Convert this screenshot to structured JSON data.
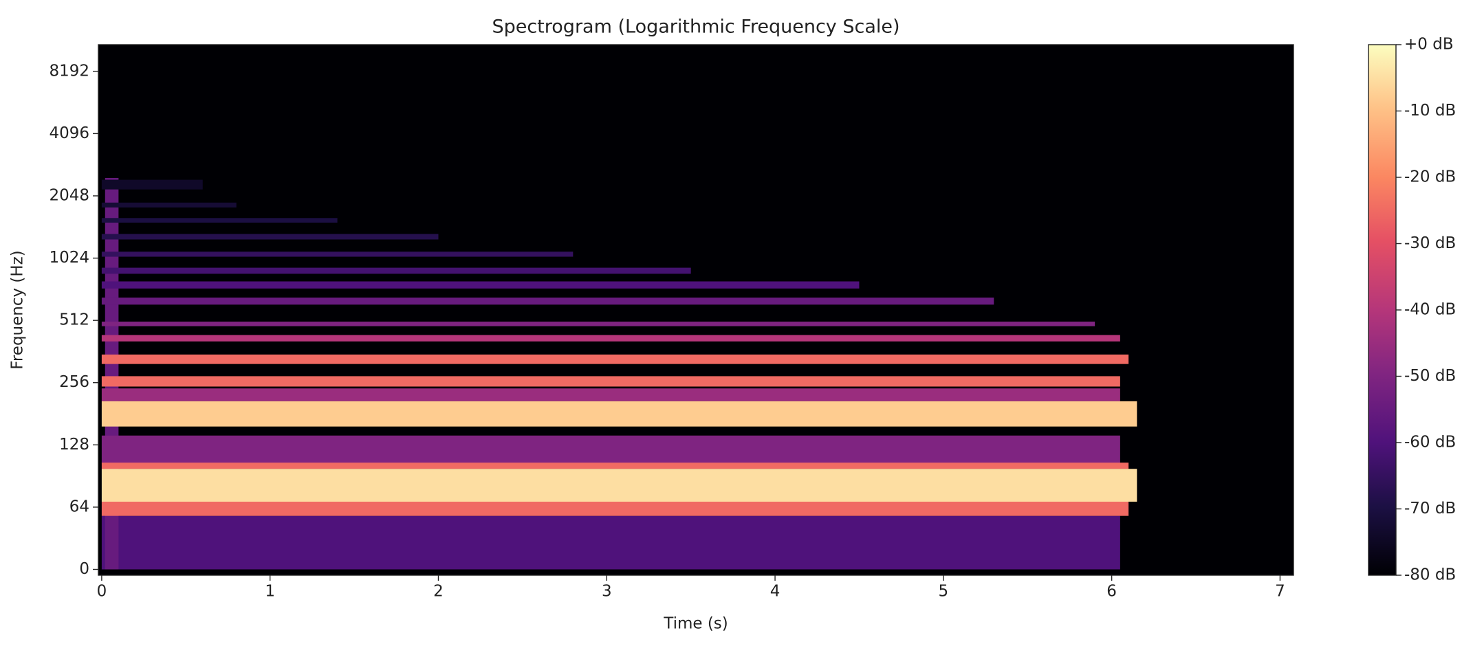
{
  "chart_data": {
    "type": "spectrogram",
    "title": "Spectrogram (Logarithmic Frequency Scale)",
    "xlabel": "Time (s)",
    "ylabel": "Frequency (Hz)",
    "xlim": [
      -0.02,
      7.08
    ],
    "xticks": [
      0,
      1,
      2,
      3,
      4,
      5,
      6,
      7
    ],
    "ylim": [
      -6,
      11025
    ],
    "yticks": [
      0,
      64,
      128,
      256,
      512,
      1024,
      2048,
      4096,
      8192
    ],
    "yscale": "symlog",
    "linthresh": 64,
    "base": 2,
    "colormap": "magma",
    "clim": [
      -80,
      0
    ],
    "cticks": [
      {
        "value": 0,
        "label": "+0 dB"
      },
      {
        "value": -10,
        "label": "-10 dB"
      },
      {
        "value": -20,
        "label": "-20 dB"
      },
      {
        "value": -30,
        "label": "-30 dB"
      },
      {
        "value": -40,
        "label": "-40 dB"
      },
      {
        "value": -50,
        "label": "-50 dB"
      },
      {
        "value": -60,
        "label": "-60 dB"
      },
      {
        "value": -70,
        "label": "-70 dB"
      },
      {
        "value": -80,
        "label": "-80 dB"
      }
    ],
    "bands": [
      {
        "t": [
          -0.02,
          7.08
        ],
        "f": [
          -6,
          11025
        ],
        "db": -80
      },
      {
        "t": [
          0,
          6.05
        ],
        "f": [
          0,
          55
        ],
        "db": -60
      },
      {
        "t": [
          0.02,
          0.1
        ],
        "f": [
          0,
          2500
        ],
        "db": -55
      },
      {
        "t": [
          0,
          0.6
        ],
        "f": [
          2200,
          2450
        ],
        "db": -74
      },
      {
        "t": [
          0,
          0.8
        ],
        "f": [
          1800,
          1900
        ],
        "db": -72
      },
      {
        "t": [
          0,
          1.4
        ],
        "f": [
          1520,
          1600
        ],
        "db": -70
      },
      {
        "t": [
          0,
          2.0
        ],
        "f": [
          1260,
          1340
        ],
        "db": -68
      },
      {
        "t": [
          0,
          2.8
        ],
        "f": [
          1040,
          1100
        ],
        "db": -65
      },
      {
        "t": [
          0,
          3.5
        ],
        "f": [
          860,
          920
        ],
        "db": -62
      },
      {
        "t": [
          0,
          4.5
        ],
        "f": [
          730,
          790
        ],
        "db": -60
      },
      {
        "t": [
          0,
          5.3
        ],
        "f": [
          610,
          660
        ],
        "db": -55
      },
      {
        "t": [
          0,
          5.9
        ],
        "f": [
          480,
          505
        ],
        "db": -50
      },
      {
        "t": [
          0,
          6.05
        ],
        "f": [
          405,
          435
        ],
        "db": -40
      },
      {
        "t": [
          0,
          6.1
        ],
        "f": [
          315,
          350
        ],
        "db": -25
      },
      {
        "t": [
          0,
          6.05
        ],
        "f": [
          245,
          275
        ],
        "db": -25
      },
      {
        "t": [
          0,
          6.05
        ],
        "f": [
          208,
          240
        ],
        "db": -45
      },
      {
        "t": [
          0,
          6.15
        ],
        "f": [
          157,
          208
        ],
        "db": -8
      },
      {
        "t": [
          0,
          6.05
        ],
        "f": [
          104,
          142
        ],
        "db": -50
      },
      {
        "t": [
          0,
          6.1
        ],
        "f": [
          98,
          105
        ],
        "db": -25
      },
      {
        "t": [
          0,
          6.15
        ],
        "f": [
          68,
          98
        ],
        "db": -5
      },
      {
        "t": [
          0,
          6.1
        ],
        "f": [
          55,
          68
        ],
        "db": -25
      }
    ]
  }
}
